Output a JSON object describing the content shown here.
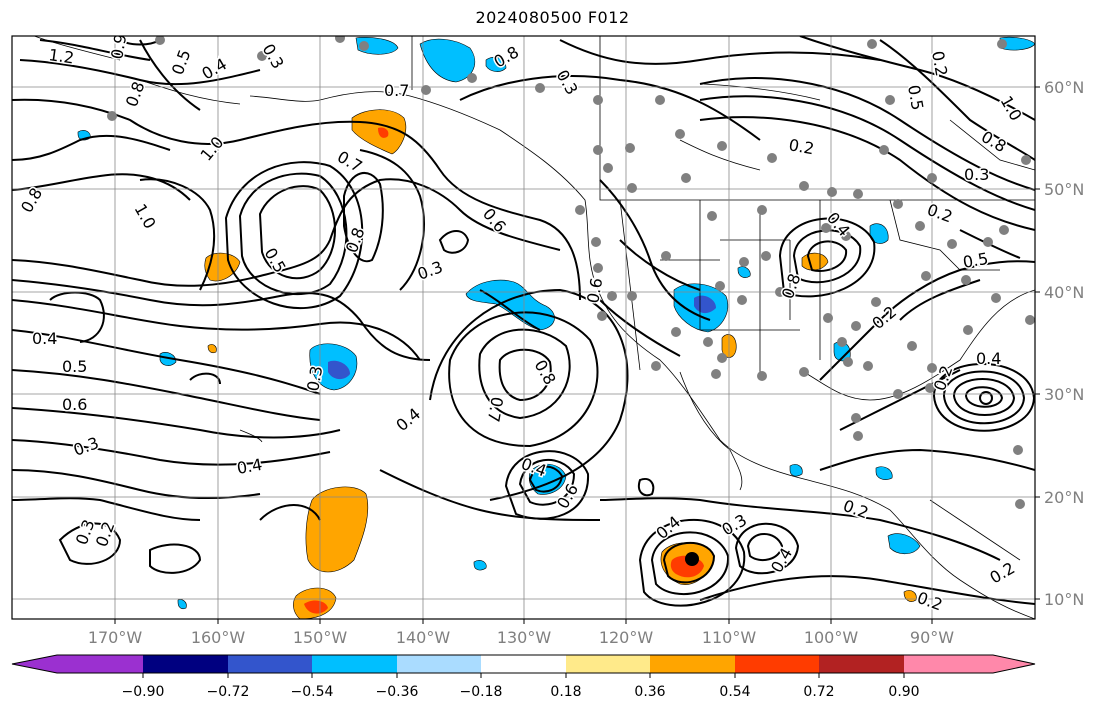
{
  "title": "2024080500 F012",
  "map": {
    "longitude_labels": [
      "170°W",
      "160°W",
      "150°W",
      "140°W",
      "130°W",
      "120°W",
      "110°W",
      "100°W",
      "90°W"
    ],
    "latitude_labels": [
      "60°N",
      "50°N",
      "40°N",
      "30°N",
      "20°N",
      "10°N"
    ],
    "contour_labels": [
      "1.2",
      "0.9",
      "0.8",
      "0.5",
      "0.3",
      "0.4",
      "0.7",
      "1.0",
      "0.8",
      "0.7",
      "0.6",
      "0.2",
      "0.3",
      "0.8",
      "1.0",
      "0.5",
      "0.8",
      "0.3",
      "0.6",
      "0.4",
      "0.5",
      "0.6",
      "0.3",
      "0.4",
      "0.3",
      "0.2",
      "0.3",
      "0.4",
      "0.4",
      "0.6",
      "0.7",
      "0.8",
      "0.4",
      "0.3",
      "0.4",
      "0.2",
      "0.2",
      "0.4",
      "0.8",
      "0.2",
      "0.5",
      "0.4",
      "0.2",
      "0.2",
      "1.0",
      "0.5",
      "0.8",
      "0.3",
      "0.2",
      "0.2"
    ]
  },
  "colorbar": {
    "tick_labels": [
      "−0.90",
      "−0.72",
      "−0.54",
      "−0.36",
      "−0.18",
      "0.18",
      "0.36",
      "0.54",
      "0.72",
      "0.90"
    ],
    "colors": [
      "#9b30d0",
      "#000080",
      "#3355cc",
      "#00bfff",
      "#aadcff",
      "#ffffff",
      "#ffea8a",
      "#ffa500",
      "#ff3c00",
      "#b22222",
      "#ff88aa"
    ]
  }
}
